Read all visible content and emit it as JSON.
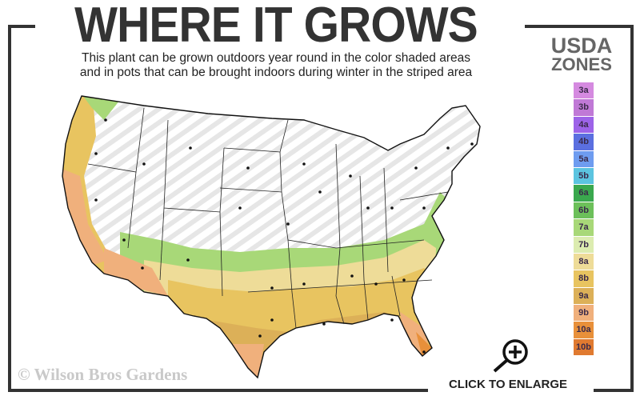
{
  "header": {
    "title": "WHERE IT GROWS",
    "subtitle_line1": "This plant can be grown outdoors year round in the color shaded areas",
    "subtitle_line2": "and in pots that can be brought indoors during winter in the striped area"
  },
  "legend": {
    "title_line1": "USDA",
    "title_line2": "ZONES",
    "zones": [
      {
        "label": "3a",
        "color": "#d58ae0"
      },
      {
        "label": "3b",
        "color": "#c079d6"
      },
      {
        "label": "4a",
        "color": "#9d63e8"
      },
      {
        "label": "4b",
        "color": "#5b6fe0"
      },
      {
        "label": "5a",
        "color": "#6e9cf0"
      },
      {
        "label": "5b",
        "color": "#5cc4e0"
      },
      {
        "label": "6a",
        "color": "#3aa84e"
      },
      {
        "label": "6b",
        "color": "#6cc05a"
      },
      {
        "label": "7a",
        "color": "#a8d878"
      },
      {
        "label": "7b",
        "color": "#dcecb0"
      },
      {
        "label": "8a",
        "color": "#eedc98"
      },
      {
        "label": "8b",
        "color": "#e8c460"
      },
      {
        "label": "9a",
        "color": "#dcb058"
      },
      {
        "label": "9b",
        "color": "#f0b07c"
      },
      {
        "label": "10a",
        "color": "#e8903a"
      },
      {
        "label": "10b",
        "color": "#e07a30"
      }
    ]
  },
  "map": {
    "striped_color": "#e6e6e6",
    "outline_color": "#111111"
  },
  "footer": {
    "copyright": "© Wilson Bros Gardens",
    "enlarge_label": "CLICK TO ENLARGE",
    "enlarge_icon": "zoom-in-icon"
  }
}
